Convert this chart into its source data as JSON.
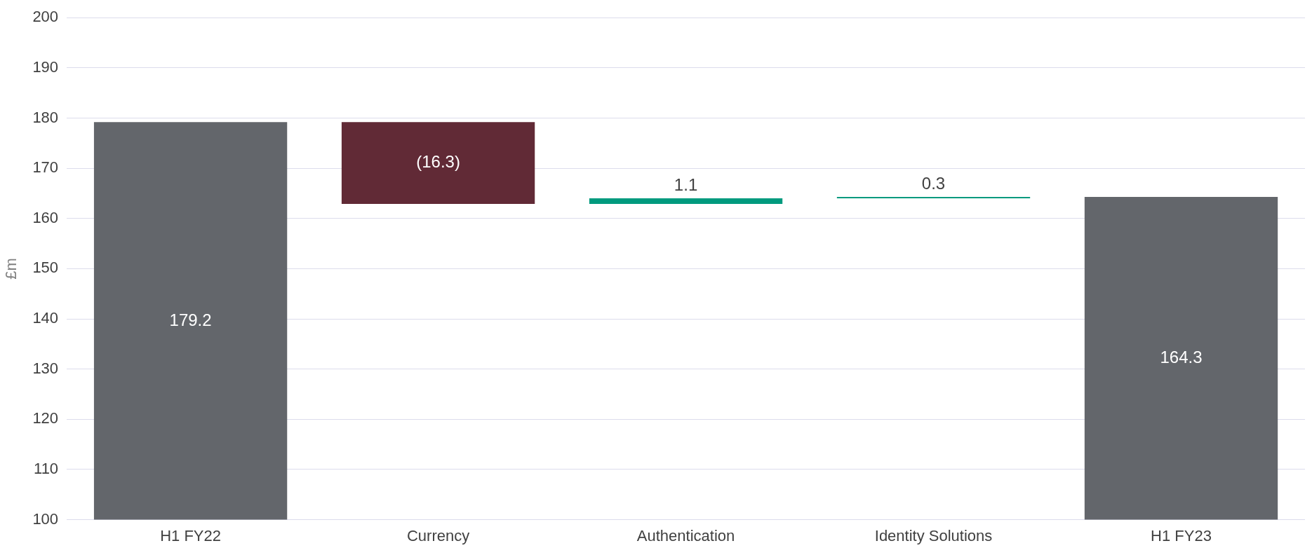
{
  "chart_data": {
    "type": "bar",
    "ylabel": "£m",
    "categories": [
      "H1 FY22",
      "Currency",
      "Authentication",
      "Identity Solutions",
      "H1 FY23"
    ],
    "values": [
      179.2,
      -16.3,
      1.1,
      0.3,
      164.3
    ],
    "base": [
      0,
      179.2,
      162.9,
      164.0,
      0
    ],
    "colors": [
      "#63666b",
      "#612a36",
      "#009a7e",
      "#009a7e",
      "#63666b"
    ],
    "value_labels": [
      "179.2",
      "(16.3)",
      "1.1",
      "0.3",
      "164.3"
    ],
    "ylim": [
      100,
      200
    ],
    "yticks": [
      100,
      110,
      120,
      130,
      140,
      150,
      160,
      170,
      180,
      190,
      200
    ],
    "grid": "y",
    "legend": false
  }
}
